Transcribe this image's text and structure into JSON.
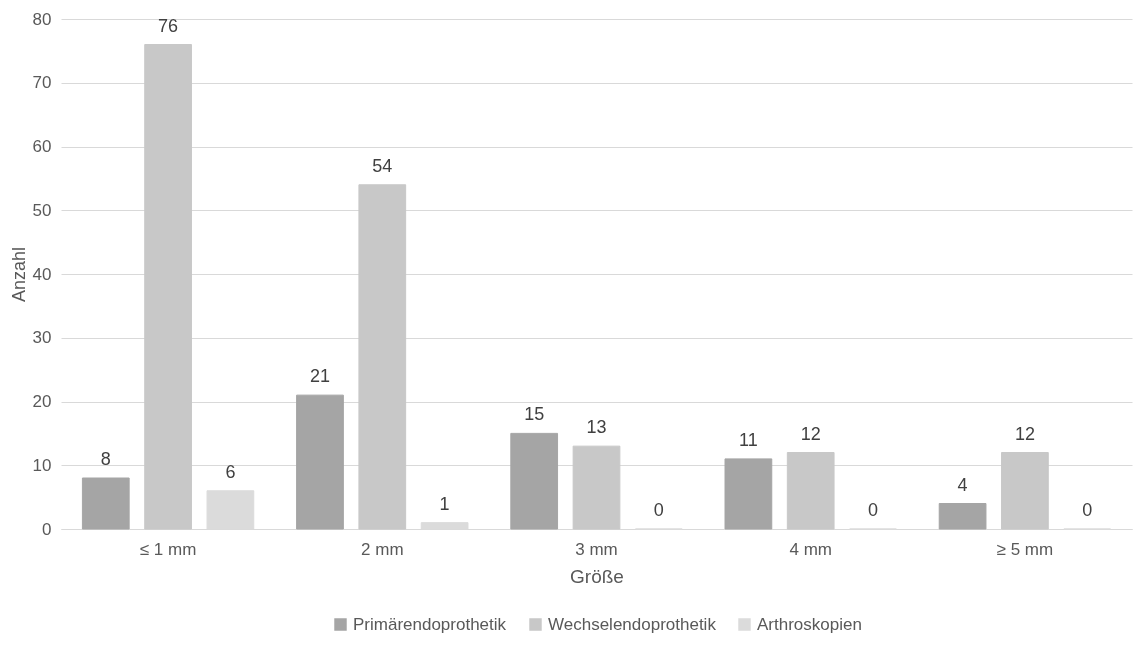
{
  "chart_data": {
    "type": "bar",
    "xlabel": "Größe",
    "ylabel": "Anzahl",
    "categories": [
      "≤ 1 mm",
      "2 mm",
      "3 mm",
      "4 mm",
      "≥ 5 mm"
    ],
    "series": [
      {
        "name": "Primärendoprothetik",
        "color": "#a5a5a5",
        "values": [
          8,
          21,
          15,
          11,
          4
        ]
      },
      {
        "name": "Wechselendoprothetik",
        "color": "#c8c8c8",
        "values": [
          76,
          54,
          13,
          12,
          12
        ]
      },
      {
        "name": "Arthroskopien",
        "color": "#dbdbdb",
        "values": [
          6,
          1,
          0,
          0,
          0
        ]
      }
    ],
    "ylim": [
      0,
      80
    ],
    "yticks": [
      0,
      10,
      20,
      30,
      40,
      50,
      60,
      70,
      80
    ],
    "grid": "y",
    "legend": "bottom",
    "data_labels": true
  }
}
